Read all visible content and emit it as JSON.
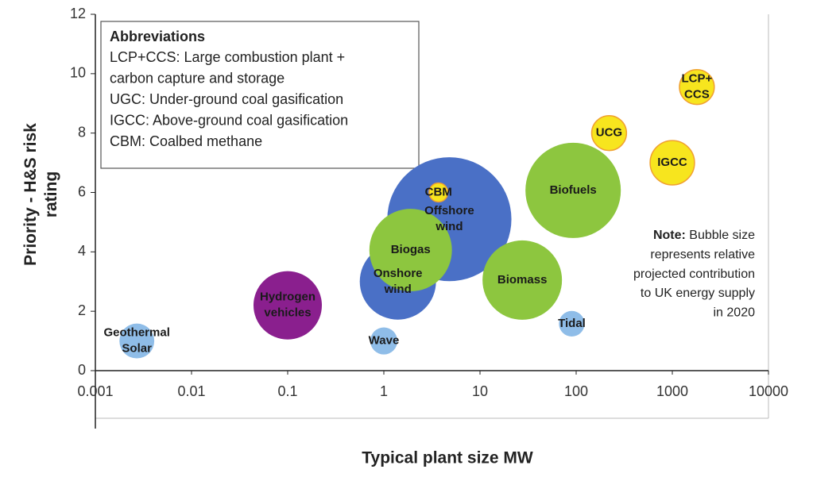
{
  "chart_data": {
    "type": "bubble",
    "xlabel": "Typical plant size MW",
    "ylabel": [
      "Priority - H&S risk",
      "rating"
    ],
    "xlog": true,
    "xlim": [
      0.001,
      10000
    ],
    "xticks": [
      0.001,
      0.01,
      0.1,
      1,
      10,
      100,
      1000,
      10000
    ],
    "ylim": [
      0,
      12
    ],
    "yticks": [
      0,
      2,
      4,
      6,
      8,
      10,
      12
    ],
    "points": [
      {
        "label": "Geothermal Solar",
        "x": 0.0027,
        "y": 1,
        "size": 4.8,
        "color": "#8fbde8"
      },
      {
        "label": "Hydrogen vehicles",
        "x": 0.1,
        "y": 2.2,
        "size": 18.5,
        "color": "#8a1f8e"
      },
      {
        "label": "Wave",
        "x": 1,
        "y": 1,
        "size": 2.9,
        "color": "#8fbde8"
      },
      {
        "label": "Offshore wind",
        "x": 4.8,
        "y": 5.1,
        "size": 61,
        "color": "#4a70c6"
      },
      {
        "label": "Onshore wind",
        "x": 1.4,
        "y": 3.0,
        "size": 23,
        "color": "#4a70c6"
      },
      {
        "label": "Biogas",
        "x": 1.9,
        "y": 4.06,
        "size": 27,
        "color": "#8dc63f"
      },
      {
        "label": "CBM",
        "x": 3.7,
        "y": 6.0,
        "size": 1.4,
        "color": "#f7e51e"
      },
      {
        "label": "Biomass",
        "x": 27.5,
        "y": 3.05,
        "size": 25,
        "color": "#8dc63f"
      },
      {
        "label": "Biofuels",
        "x": 93,
        "y": 6.07,
        "size": 36,
        "color": "#8dc63f"
      },
      {
        "label": "Tidal",
        "x": 90,
        "y": 1.58,
        "size": 2.6,
        "color": "#8fbde8"
      },
      {
        "label": "UCG",
        "x": 220,
        "y": 8,
        "size": 4.8,
        "color": "#f7e51e"
      },
      {
        "label": "IGCC",
        "x": 1000,
        "y": 7.0,
        "size": 7.8,
        "color": "#f7e51e"
      },
      {
        "label": "LCP+ CCS",
        "x": 1800,
        "y": 9.55,
        "size": 4.8,
        "color": "#f7e51e"
      }
    ],
    "abbreviations": {
      "title": "Abbreviations",
      "lines": [
        "LCP+CCS: Large combustion plant +",
        "carbon capture and storage",
        "UGC: Under-ground coal gasification",
        "IGCC: Above-ground coal gasification",
        "CBM: Coalbed methane"
      ]
    },
    "note": {
      "label": "Note:",
      "lines": [
        "Bubble size",
        "represents relative",
        "projected contribution",
        "to UK energy supply",
        "in 2020"
      ]
    }
  }
}
